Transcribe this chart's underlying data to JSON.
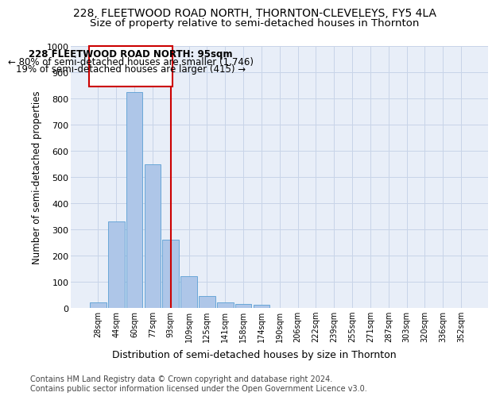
{
  "title1": "228, FLEETWOOD ROAD NORTH, THORNTON-CLEVELEYS, FY5 4LA",
  "title2": "Size of property relative to semi-detached houses in Thornton",
  "xlabel": "Distribution of semi-detached houses by size in Thornton",
  "ylabel": "Number of semi-detached properties",
  "footnote1": "Contains HM Land Registry data © Crown copyright and database right 2024.",
  "footnote2": "Contains public sector information licensed under the Open Government Licence v3.0.",
  "annotation_line1": "228 FLEETWOOD ROAD NORTH: 95sqm",
  "annotation_line2": "← 80% of semi-detached houses are smaller (1,746)",
  "annotation_line3": "19% of semi-detached houses are larger (415) →",
  "bar_categories": [
    "28sqm",
    "44sqm",
    "60sqm",
    "77sqm",
    "93sqm",
    "109sqm",
    "125sqm",
    "141sqm",
    "158sqm",
    "174sqm",
    "190sqm",
    "206sqm",
    "222sqm",
    "239sqm",
    "255sqm",
    "271sqm",
    "287sqm",
    "303sqm",
    "320sqm",
    "336sqm",
    "352sqm"
  ],
  "bar_values": [
    22,
    330,
    825,
    550,
    260,
    120,
    45,
    22,
    15,
    12,
    0,
    0,
    0,
    0,
    0,
    0,
    0,
    0,
    0,
    0,
    0
  ],
  "bar_color": "#aec6e8",
  "bar_edge_color": "#5a9fd4",
  "vline_color": "#cc0000",
  "vline_index": 4.5,
  "ylim": [
    0,
    1000
  ],
  "yticks": [
    0,
    100,
    200,
    300,
    400,
    500,
    600,
    700,
    800,
    900,
    1000
  ],
  "grid_color": "#c8d4e8",
  "background_color": "#e8eef8",
  "box_color": "#cc0000",
  "title1_fontsize": 10,
  "title2_fontsize": 9.5,
  "annotation_fontsize": 8.5,
  "ylabel_fontsize": 8.5,
  "xlabel_fontsize": 9,
  "footnote_fontsize": 7
}
